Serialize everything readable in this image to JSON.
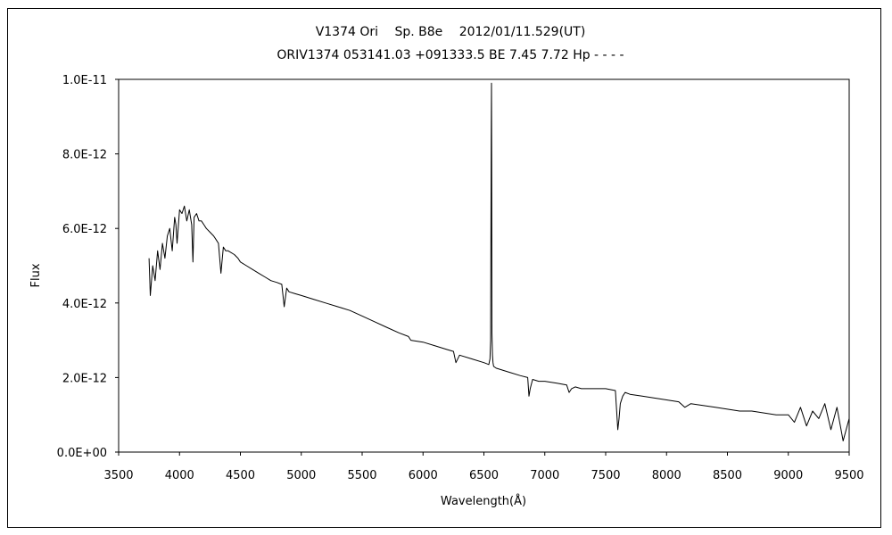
{
  "chart_data": {
    "type": "line",
    "title": "V1374 Ori　 Sp. B8e　 2012/01/11.529(UT)",
    "subtitle": "ORIV1374 053141.03 +091333.5 BE 7.45 7.72 Hp - - - -",
    "xlabel": "Wavelength(Å)",
    "ylabel": "Flux",
    "xlim": [
      3500,
      9500
    ],
    "ylim": [
      0,
      1e-11
    ],
    "x_ticks": [
      "3500",
      "4000",
      "4500",
      "5000",
      "5500",
      "6000",
      "6500",
      "7000",
      "7500",
      "8000",
      "8500",
      "9000",
      "9500"
    ],
    "y_ticks": [
      "0.0E+00",
      "2.0E-12",
      "4.0E-12",
      "6.0E-12",
      "8.0E-12",
      "1.0E-11"
    ],
    "grid": false,
    "legend": "none",
    "line_color": "#000000",
    "series": [
      {
        "x": [
          3750,
          3760,
          3780,
          3800,
          3820,
          3840,
          3860,
          3880,
          3900,
          3920,
          3940,
          3960,
          3970,
          3980,
          4000,
          4020,
          4040,
          4060,
          4080,
          4100,
          4110,
          4120,
          4140,
          4160,
          4180,
          4200,
          4220,
          4250,
          4280,
          4300,
          4320,
          4340,
          4360,
          4380,
          4400,
          4450,
          4480,
          4500,
          4550,
          4600,
          4650,
          4700,
          4750,
          4800,
          4840,
          4860,
          4880,
          4900,
          4950,
          5000,
          5100,
          5200,
          5300,
          5400,
          5500,
          5600,
          5700,
          5800,
          5880,
          5900,
          6000,
          6100,
          6200,
          6250,
          6270,
          6300,
          6400,
          6500,
          6540,
          6550,
          6555,
          6560,
          6562,
          6564,
          6566,
          6570,
          6575,
          6580,
          6600,
          6700,
          6800,
          6860,
          6870,
          6880,
          6900,
          6950,
          7000,
          7100,
          7180,
          7200,
          7220,
          7250,
          7300,
          7400,
          7500,
          7580,
          7600,
          7610,
          7620,
          7640,
          7660,
          7700,
          7800,
          7900,
          8000,
          8100,
          8150,
          8200,
          8300,
          8400,
          8500,
          8600,
          8700,
          8800,
          8900,
          9000,
          9050,
          9100,
          9150,
          9200,
          9250,
          9300,
          9350,
          9400,
          9450,
          9500
        ],
        "y": [
          5.2e-12,
          4.2e-12,
          5e-12,
          4.6e-12,
          5.4e-12,
          4.9e-12,
          5.6e-12,
          5.2e-12,
          5.8e-12,
          6e-12,
          5.4e-12,
          6.3e-12,
          6.1e-12,
          5.6e-12,
          6.5e-12,
          6.4e-12,
          6.6e-12,
          6.2e-12,
          6.5e-12,
          6.1e-12,
          5.1e-12,
          6.3e-12,
          6.4e-12,
          6.2e-12,
          6.2e-12,
          6.1e-12,
          6e-12,
          5.9e-12,
          5.8e-12,
          5.7e-12,
          5.6e-12,
          4.8e-12,
          5.5e-12,
          5.4e-12,
          5.4e-12,
          5.3e-12,
          5.2e-12,
          5.1e-12,
          5e-12,
          4.9e-12,
          4.8e-12,
          4.7e-12,
          4.6e-12,
          4.55e-12,
          4.5e-12,
          3.9e-12,
          4.4e-12,
          4.3e-12,
          4.25e-12,
          4.2e-12,
          4.1e-12,
          4e-12,
          3.9e-12,
          3.8e-12,
          3.65e-12,
          3.5e-12,
          3.35e-12,
          3.2e-12,
          3.1e-12,
          3e-12,
          2.95e-12,
          2.85e-12,
          2.75e-12,
          2.7e-12,
          2.4e-12,
          2.6e-12,
          2.5e-12,
          2.4e-12,
          2.35e-12,
          2.5e-12,
          3e-12,
          8.4e-12,
          9.9e-12,
          8e-12,
          3.2e-12,
          2.6e-12,
          2.4e-12,
          2.3e-12,
          2.25e-12,
          2.15e-12,
          2.05e-12,
          2e-12,
          1.5e-12,
          1.7e-12,
          1.95e-12,
          1.9e-12,
          1.9e-12,
          1.85e-12,
          1.8e-12,
          1.6e-12,
          1.7e-12,
          1.75e-12,
          1.7e-12,
          1.7e-12,
          1.7e-12,
          1.65e-12,
          6e-13,
          9e-13,
          1.3e-12,
          1.5e-12,
          1.6e-12,
          1.55e-12,
          1.5e-12,
          1.45e-12,
          1.4e-12,
          1.35e-12,
          1.2e-12,
          1.3e-12,
          1.25e-12,
          1.2e-12,
          1.15e-12,
          1.1e-12,
          1.1e-12,
          1.05e-12,
          1e-12,
          1e-12,
          8e-13,
          1.2e-12,
          7e-13,
          1.1e-12,
          9e-13,
          1.3e-12,
          6e-13,
          1.2e-12,
          3e-13,
          9e-13
        ]
      }
    ]
  }
}
